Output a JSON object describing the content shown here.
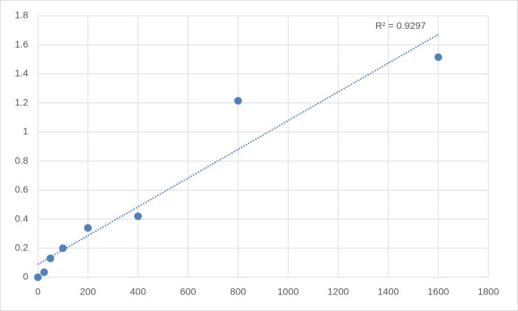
{
  "chart_data": {
    "type": "scatter",
    "x": [
      0,
      25,
      50,
      100,
      200,
      400,
      800,
      1600
    ],
    "series": [
      {
        "color": "#4f81bd",
        "values": [
          0,
          0.035,
          0.13,
          0.2,
          0.34,
          0.42,
          1.215,
          1.515
        ]
      }
    ],
    "trendline": "linear",
    "annotation": "R² = 0.9297",
    "xlim": [
      0,
      1800
    ],
    "xticks": [
      0,
      200,
      400,
      600,
      800,
      1000,
      1200,
      1400,
      1600,
      1800
    ],
    "ylim": [
      0,
      1.8
    ],
    "yticks": [
      0,
      0.2,
      0.4,
      0.6,
      0.8,
      1,
      1.2,
      1.4,
      1.6,
      1.8
    ],
    "grid": true
  }
}
